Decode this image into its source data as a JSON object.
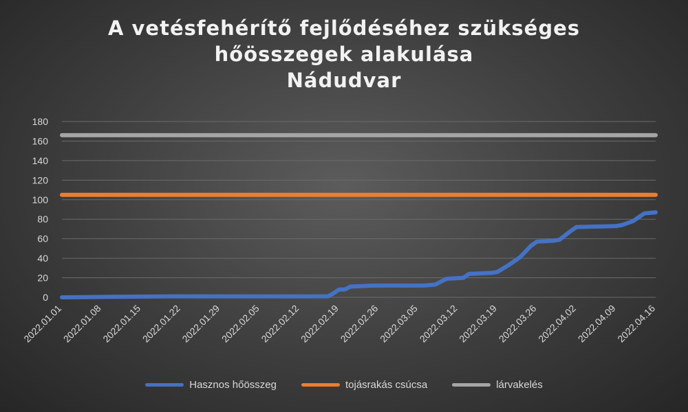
{
  "chart_data": {
    "type": "line",
    "title_lines": [
      "A vetésfehérítő fejlődéséhez szükséges",
      "hőösszegek alakulása",
      "Nádudvar"
    ],
    "xlabel": "",
    "ylabel": "",
    "ylim": [
      0,
      180
    ],
    "yticks": [
      0,
      20,
      40,
      60,
      80,
      100,
      120,
      140,
      160,
      180
    ],
    "xlim": [
      "2022.01.01",
      "2022.04.16"
    ],
    "xticks": [
      "2022.01.01",
      "2022.01.08",
      "2022.01.15",
      "2022.01.22",
      "2022.01.29",
      "2022.02.05",
      "2022.02.12",
      "2022.02.19",
      "2022.02.26",
      "2022.03.05",
      "2022.03.12",
      "2022.03.19",
      "2022.03.26",
      "2022.04.02",
      "2022.04.09",
      "2022.04.16"
    ],
    "grid": true,
    "legend_position": "bottom",
    "series": [
      {
        "name": "Hasznos hőösszeg",
        "color": "#4472c4",
        "points": [
          [
            "2022.01.01",
            0
          ],
          [
            "2022.01.10",
            0.5
          ],
          [
            "2022.01.20",
            1
          ],
          [
            "2022.02.10",
            1
          ],
          [
            "2022.02.17",
            1
          ],
          [
            "2022.02.18",
            4
          ],
          [
            "2022.02.19",
            8
          ],
          [
            "2022.02.20",
            8
          ],
          [
            "2022.02.21",
            11
          ],
          [
            "2022.02.25",
            12
          ],
          [
            "2022.03.06",
            12
          ],
          [
            "2022.03.08",
            13
          ],
          [
            "2022.03.10",
            19
          ],
          [
            "2022.03.13",
            20
          ],
          [
            "2022.03.14",
            24
          ],
          [
            "2022.03.18",
            25
          ],
          [
            "2022.03.19",
            26
          ],
          [
            "2022.03.21",
            33
          ],
          [
            "2022.03.23",
            41
          ],
          [
            "2022.03.25",
            53
          ],
          [
            "2022.03.26",
            57
          ],
          [
            "2022.03.29",
            58
          ],
          [
            "2022.03.30",
            59
          ],
          [
            "2022.04.01",
            68
          ],
          [
            "2022.04.02",
            72
          ],
          [
            "2022.04.09",
            73
          ],
          [
            "2022.04.10",
            74
          ],
          [
            "2022.04.12",
            78
          ],
          [
            "2022.04.13",
            82
          ],
          [
            "2022.04.14",
            86
          ],
          [
            "2022.04.16",
            87
          ]
        ]
      },
      {
        "name": "tojásrakás csúcsa",
        "color": "#ed7d31",
        "points": [
          [
            "2022.01.01",
            105
          ],
          [
            "2022.04.16",
            105
          ]
        ]
      },
      {
        "name": "lárvakelés",
        "color": "#a5a5a5",
        "points": [
          [
            "2022.01.01",
            166
          ],
          [
            "2022.04.16",
            166
          ]
        ]
      }
    ]
  }
}
